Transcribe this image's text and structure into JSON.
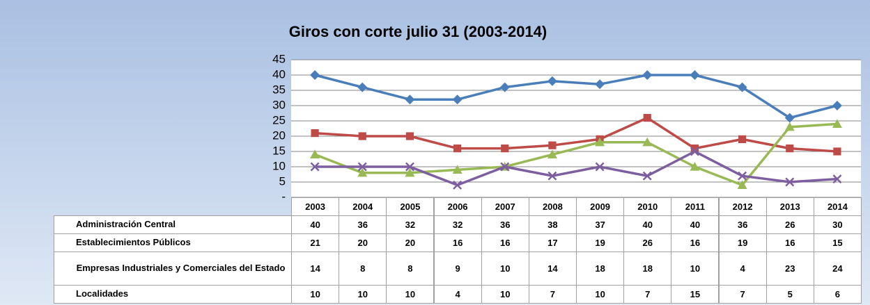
{
  "chart_data": {
    "type": "line",
    "title": "Giros con corte julio 31 (2003-2014)",
    "categories": [
      "2003",
      "2004",
      "2005",
      "2006",
      "2007",
      "2008",
      "2009",
      "2010",
      "2011",
      "2012",
      "2013",
      "2014"
    ],
    "series": [
      {
        "name": "Administración Central",
        "color": "#4a7ebb",
        "marker": "diamond",
        "values": [
          40,
          36,
          32,
          32,
          36,
          38,
          37,
          40,
          40,
          36,
          26,
          30
        ]
      },
      {
        "name": "Establecimientos Públicos",
        "color": "#be4b48",
        "marker": "square",
        "values": [
          21,
          20,
          20,
          16,
          16,
          17,
          19,
          26,
          16,
          19,
          16,
          15
        ]
      },
      {
        "name": "Empresas Industriales y Comerciales del Estado",
        "color": "#98b954",
        "marker": "triangle",
        "values": [
          14,
          8,
          8,
          9,
          10,
          14,
          18,
          18,
          10,
          4,
          23,
          24
        ]
      },
      {
        "name": "Localidades",
        "color": "#7d5fa0",
        "marker": "x",
        "values": [
          10,
          10,
          10,
          4,
          10,
          7,
          10,
          7,
          15,
          7,
          5,
          6
        ]
      }
    ],
    "ylim": [
      0,
      45
    ],
    "yticks": [
      {
        "value": 0,
        "label": "-"
      },
      5,
      10,
      15,
      20,
      25,
      30,
      35,
      40,
      45
    ],
    "grid": true,
    "data_table": true
  }
}
